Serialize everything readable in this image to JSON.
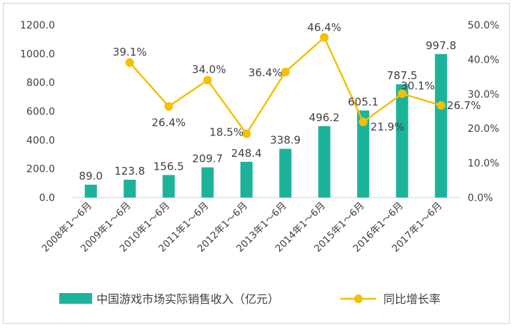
{
  "chart_data": {
    "type": "bar+line",
    "categories": [
      "2008年1～6月",
      "2009年1～6月",
      "2010年1～6月",
      "2011年1～6月",
      "2012年1～6月",
      "2013年1～6月",
      "2014年1～6月",
      "2015年1～6月",
      "2016年1～6月",
      "2017年1～6月"
    ],
    "series": [
      {
        "name": "中国游戏市场实际销售收入（亿元）",
        "type": "bar",
        "axis": "left",
        "values": [
          89.0,
          123.8,
          156.5,
          209.7,
          248.4,
          338.9,
          496.2,
          605.1,
          787.5,
          997.8
        ],
        "labels": [
          "89.0",
          "123.8",
          "156.5",
          "209.7",
          "248.4",
          "338.9",
          "496.2",
          "605.1",
          "787.5",
          "997.8"
        ],
        "color": "#1db39a"
      },
      {
        "name": "同比增长率",
        "type": "line",
        "axis": "right",
        "values": [
          null,
          39.1,
          26.4,
          34.0,
          18.5,
          36.4,
          46.4,
          21.9,
          30.1,
          26.7
        ],
        "labels": [
          null,
          "39.1%",
          "26.4%",
          "34.0%",
          "18.5%",
          "36.4%",
          "46.4%",
          "21.9%",
          "30.1%",
          "26.7%"
        ],
        "color": "#f5c000"
      }
    ],
    "left_axis": {
      "range": [
        0,
        1200
      ],
      "ticks": [
        "0.0",
        "200.0",
        "400.0",
        "600.0",
        "800.0",
        "1000.0",
        "1200.0"
      ]
    },
    "right_axis": {
      "range": [
        0,
        50
      ],
      "ticks": [
        "0.0%",
        "10.0%",
        "20.0%",
        "30.0%",
        "40.0%",
        "50.0%"
      ]
    },
    "grid": false,
    "legend": "bottom"
  }
}
